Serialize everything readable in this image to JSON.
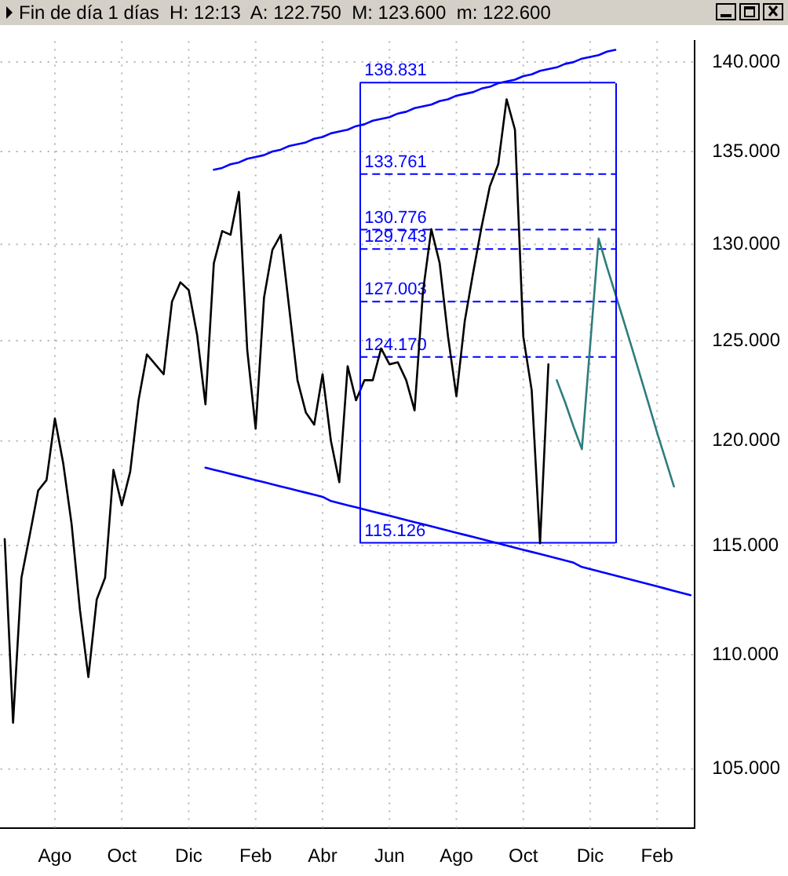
{
  "chart_data": {
    "type": "line",
    "title": "Fin de día 1 días  H: 12:13  A: 122.750  M: 123.600  m: 122.600",
    "categories": [
      null,
      null,
      null,
      null,
      null,
      null,
      "Ago",
      null,
      null,
      null,
      null,
      null,
      null,
      null,
      "Oct",
      null,
      null,
      null,
      null,
      null,
      null,
      null,
      "Dic",
      null,
      null,
      null,
      null,
      null,
      null,
      null,
      "Feb",
      null,
      null,
      null,
      null,
      null,
      null,
      null,
      "Abr",
      null,
      null,
      null,
      null,
      null,
      null,
      null,
      "Jun",
      null,
      null,
      null,
      null,
      null,
      null,
      null,
      "Ago",
      null,
      null,
      null,
      null,
      null,
      null,
      null,
      "Oct",
      null,
      null,
      null,
      null,
      null,
      null,
      null,
      "Dic",
      null,
      null,
      null,
      null,
      null,
      null,
      null,
      "Feb",
      null,
      null,
      null,
      null
    ],
    "ylim": [
      102.5,
      141.2
    ],
    "yticks": [
      {
        "value": 105,
        "label": "105.000"
      },
      {
        "value": 110,
        "label": "110.000"
      },
      {
        "value": 115,
        "label": "115.000"
      },
      {
        "value": 120,
        "label": "120.000"
      },
      {
        "value": 125,
        "label": "125.000"
      },
      {
        "value": 130,
        "label": "130.000"
      },
      {
        "value": 135,
        "label": "135.000"
      },
      {
        "value": 140,
        "label": "140.000"
      }
    ],
    "log": "y",
    "grid": true,
    "legend": false,
    "marker": "none",
    "line_style": "solid",
    "series": [
      {
        "color": "#000000",
        "values": [
          115.3,
          107,
          113.5,
          115.5,
          117.6,
          118.1,
          121.1,
          118.9,
          116,
          112,
          109,
          112.5,
          113.5,
          118.6,
          116.9,
          118.5,
          122,
          124.3,
          123.8,
          123.3,
          127,
          128,
          127.6,
          125.3,
          121.8,
          129,
          130.7,
          130.5,
          132.8,
          124.5,
          120.6,
          127.2,
          129.7,
          130.5,
          126.7,
          123,
          121.4,
          120.8,
          123.3,
          120,
          118,
          123.7,
          122,
          123,
          123,
          124.6,
          123.8,
          123.9,
          123,
          121.5,
          127.5,
          130.8,
          129,
          125.2,
          122.2,
          126,
          128.5,
          130.9,
          133.1,
          134.3,
          137.9,
          136.2,
          125.2,
          122.5,
          115.1,
          123.8,
          null,
          null,
          null,
          null,
          null,
          null,
          null,
          null,
          null,
          null,
          null,
          null,
          null,
          null,
          null,
          null,
          null
        ]
      },
      {
        "color": "#0000ff",
        "values": [
          null,
          null,
          null,
          null,
          null,
          null,
          null,
          null,
          null,
          null,
          null,
          null,
          null,
          null,
          null,
          null,
          null,
          null,
          null,
          null,
          null,
          null,
          null,
          null,
          null,
          134.0,
          134.1,
          134.3,
          134.4,
          134.6,
          134.7,
          134.8,
          135.0,
          135.1,
          135.3,
          135.4,
          135.5,
          135.7,
          135.8,
          136.0,
          136.1,
          136.2,
          136.4,
          136.5,
          136.7,
          136.8,
          136.9,
          137.1,
          137.2,
          137.4,
          137.5,
          137.6,
          137.8,
          137.9,
          138.1,
          138.2,
          138.3,
          138.5,
          138.6,
          138.8,
          138.9,
          139.0,
          139.2,
          139.3,
          139.5,
          139.6,
          139.7,
          139.9,
          140.0,
          140.2,
          140.3,
          140.4,
          140.6,
          140.7,
          null,
          null,
          null,
          null,
          null,
          null,
          null,
          null,
          null
        ]
      },
      {
        "color": "#0000ff",
        "values": [
          null,
          null,
          null,
          null,
          null,
          null,
          null,
          null,
          null,
          null,
          null,
          null,
          null,
          null,
          null,
          null,
          null,
          null,
          null,
          null,
          null,
          null,
          null,
          null,
          118.7,
          118.6,
          118.5,
          118.4,
          118.3,
          118.2,
          118.1,
          118.0,
          117.9,
          117.8,
          117.7,
          117.6,
          117.5,
          117.4,
          117.3,
          117.1,
          117.0,
          116.9,
          116.8,
          116.7,
          116.6,
          116.5,
          116.4,
          116.3,
          116.2,
          116.1,
          116.0,
          115.9,
          115.8,
          115.7,
          115.6,
          115.5,
          115.4,
          115.3,
          115.2,
          115.1,
          115.0,
          114.9,
          114.8,
          114.7,
          114.6,
          114.5,
          114.4,
          114.3,
          114.2,
          114.0,
          113.9,
          113.8,
          113.7,
          113.6,
          113.5,
          113.4,
          113.3,
          113.2,
          113.1,
          113.0,
          112.9,
          112.8,
          112.7
        ]
      },
      {
        "color": "#2e7d7d",
        "values": [
          null,
          null,
          null,
          null,
          null,
          null,
          null,
          null,
          null,
          null,
          null,
          null,
          null,
          null,
          null,
          null,
          null,
          null,
          null,
          null,
          null,
          null,
          null,
          null,
          null,
          null,
          null,
          null,
          null,
          null,
          null,
          null,
          null,
          null,
          null,
          null,
          null,
          null,
          null,
          null,
          null,
          null,
          null,
          null,
          null,
          null,
          null,
          null,
          null,
          null,
          null,
          null,
          null,
          null,
          null,
          null,
          null,
          null,
          null,
          null,
          null,
          null,
          null,
          null,
          null,
          null,
          123,
          121.9,
          120.7,
          119.6,
          124.8,
          130.3,
          128.8,
          127.4,
          126.0,
          124.6,
          123.2,
          121.8,
          120.4,
          119.1,
          117.8,
          null,
          null
        ]
      }
    ],
    "ref_lines": [
      {
        "axis": "y",
        "value": 138.831,
        "label": "138.831",
        "color": "#0000ff",
        "line_style": "solid"
      },
      {
        "axis": "y",
        "value": 133.761,
        "label": "133.761",
        "color": "#0000ff",
        "line_style": "dashed"
      },
      {
        "axis": "y",
        "value": 130.776,
        "label": "130.776",
        "color": "#0000ff",
        "line_style": "dashed"
      },
      {
        "axis": "y",
        "value": 129.743,
        "label": "129.743",
        "color": "#0000ff",
        "line_style": "dashed"
      },
      {
        "axis": "y",
        "value": 127.003,
        "label": "127.003",
        "color": "#0000ff",
        "line_style": "dashed"
      },
      {
        "axis": "y",
        "value": 124.17,
        "label": "124.170",
        "color": "#0000ff",
        "line_style": "dashed"
      },
      {
        "axis": "y",
        "value": 115.126,
        "label": "115.126",
        "color": "#0000ff",
        "line_style": "solid"
      }
    ]
  }
}
